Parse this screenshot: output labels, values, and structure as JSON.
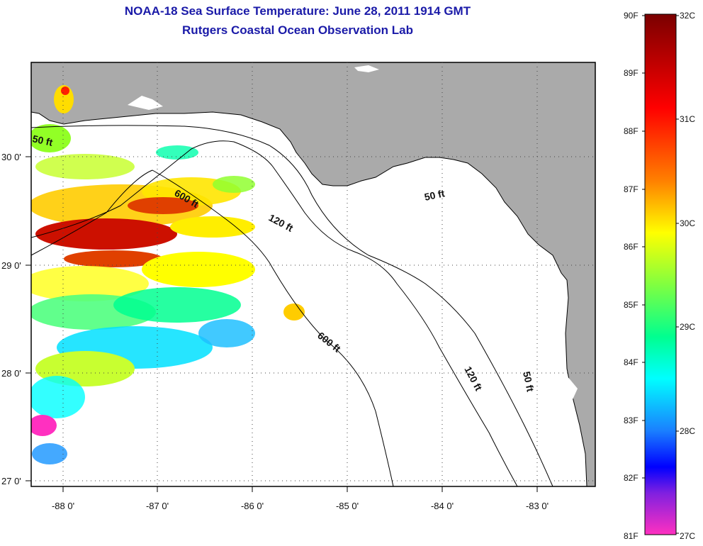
{
  "title": {
    "line1": "NOAA-18 Sea Surface Temperature:  June 28, 2011 1914 GMT",
    "line2": "Rutgers Coastal Ocean Observation Lab"
  },
  "map": {
    "x_ticks": [
      "-88 0'",
      "-87 0'",
      "-86 0'",
      "-85 0'",
      "-84 0'",
      "-83 0'"
    ],
    "y_ticks": [
      "30 0'",
      "29 0'",
      "28 0'",
      "27 0'"
    ],
    "contour_labels": [
      "50 ft",
      "600 ft",
      "120 ft",
      "50 ft",
      "600 ft",
      "120 ft",
      "50 ft"
    ],
    "land_color": "#aaaaaa",
    "water_color": "#ffffff"
  },
  "colorbar": {
    "fahrenheit": [
      "90F",
      "89F",
      "88F",
      "87F",
      "86F",
      "85F",
      "84F",
      "83F",
      "82F",
      "81F"
    ],
    "celsius": [
      "32C",
      "31C",
      "30C",
      "29C",
      "28C",
      "27C"
    ],
    "colors_top_to_bottom": [
      "#8b0000",
      "#ff0000",
      "#ff8c00",
      "#ffff00",
      "#7fff00",
      "#00ff7f",
      "#00ffff",
      "#1e90ff",
      "#0000ff",
      "#8a2be2",
      "#ff00ff",
      "#ff1493"
    ]
  }
}
